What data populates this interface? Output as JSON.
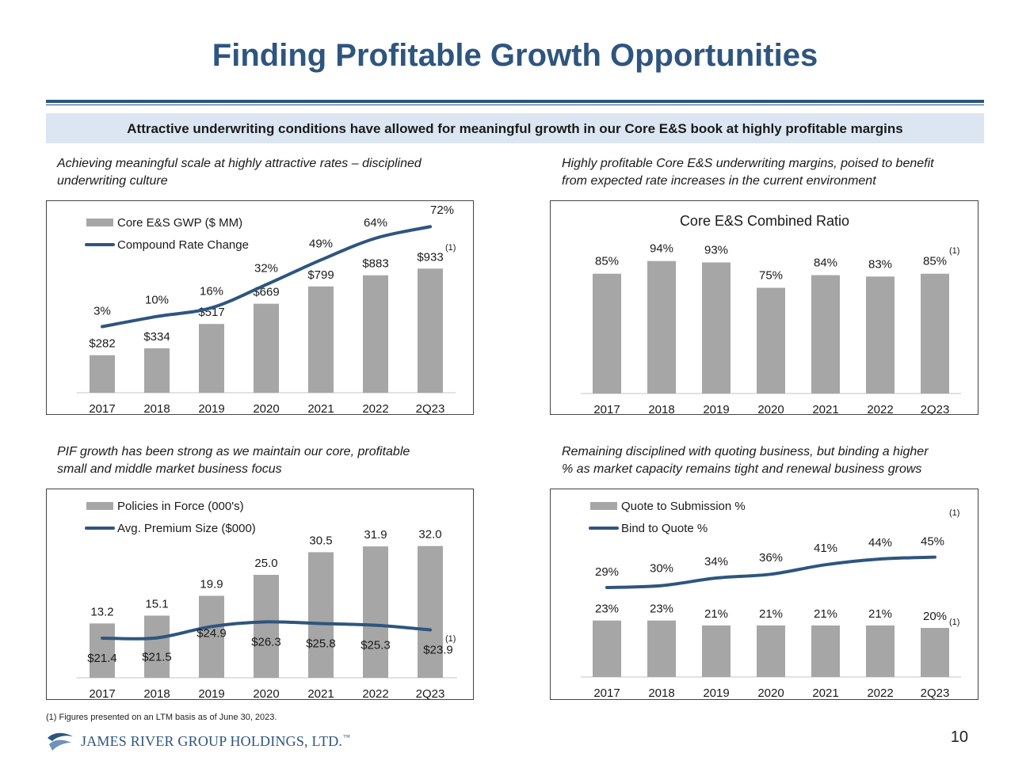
{
  "header": {
    "title": "Finding Profitable Growth Opportunities",
    "banner": "Attractive underwriting conditions have allowed for meaningful growth in our Core E&S book at highly profitable margins"
  },
  "captions": {
    "c1": [
      "Achieving meaningful scale at highly attractive rates – disciplined",
      "underwriting culture"
    ],
    "c2": [
      "Highly profitable Core E&S underwriting margins, poised to benefit",
      "from expected rate increases in the current environment"
    ],
    "c3": [
      "PIF growth has been strong as we maintain our core, profitable",
      "small and middle market business focus"
    ],
    "c4": [
      "Remaining disciplined with quoting business, but binding a higher",
      "% as market capacity remains tight and renewal business grows"
    ]
  },
  "footnote": "(1)   Figures presented on an LTM basis as of June 30, 2023.",
  "footer": {
    "company": "JAMES RIVER GROUP HOLDINGS, LTD.",
    "trademark": "™",
    "page_number": "10"
  },
  "chart_data": [
    {
      "id": "gwp",
      "type": "bar",
      "categories": [
        "2017",
        "2018",
        "2019",
        "2020",
        "2021",
        "2022",
        "2Q23"
      ],
      "series": [
        {
          "name": "Core E&S GWP ($ MM)",
          "type": "bar",
          "values": [
            282,
            334,
            517,
            669,
            799,
            883,
            933
          ],
          "labels": [
            "$282",
            "$334",
            "$517",
            "$669",
            "$799",
            "$883",
            "$933"
          ]
        },
        {
          "name": "Compound Rate Change",
          "type": "line",
          "values": [
            3,
            10,
            16,
            32,
            49,
            64,
            72
          ],
          "labels": [
            "3%",
            "10%",
            "16%",
            "32%",
            "49%",
            "64%",
            "72%"
          ]
        }
      ],
      "annotations": [
        {
          "text": "(1)",
          "target": "2Q23"
        }
      ],
      "colors": {
        "bar": "#a6a6a6",
        "line": "#2e557f"
      }
    },
    {
      "id": "combined_ratio",
      "type": "bar",
      "title": "Core E&S Combined Ratio",
      "categories": [
        "2017",
        "2018",
        "2019",
        "2020",
        "2021",
        "2022",
        "2Q23"
      ],
      "series": [
        {
          "name": "",
          "type": "bar",
          "values": [
            85,
            94,
            93,
            75,
            84,
            83,
            85
          ],
          "labels": [
            "85%",
            "94%",
            "93%",
            "75%",
            "84%",
            "83%",
            "85%"
          ]
        }
      ],
      "annotations": [
        {
          "text": "(1)",
          "target": "2Q23"
        }
      ],
      "colors": {
        "bar": "#a6a6a6"
      }
    },
    {
      "id": "pif",
      "type": "bar",
      "categories": [
        "2017",
        "2018",
        "2019",
        "2020",
        "2021",
        "2022",
        "2Q23"
      ],
      "series": [
        {
          "name": "Policies in Force (000's)",
          "type": "bar",
          "values": [
            13.2,
            15.1,
            19.9,
            25.0,
            30.5,
            31.9,
            32.0
          ],
          "labels": [
            "13.2",
            "15.1",
            "19.9",
            "25.0",
            "30.5",
            "31.9",
            "32.0"
          ]
        },
        {
          "name": "Avg. Premium Size ($000)",
          "type": "line",
          "values": [
            21.4,
            21.5,
            24.9,
            26.3,
            25.8,
            25.3,
            23.9
          ],
          "labels": [
            "$21.4",
            "$21.5",
            "$24.9",
            "$26.3",
            "$25.8",
            "$25.3",
            "$23.9"
          ]
        }
      ],
      "annotations": [
        {
          "text": "(1)",
          "target": "2Q23"
        }
      ],
      "colors": {
        "bar": "#a6a6a6",
        "line": "#2e557f"
      }
    },
    {
      "id": "quote",
      "type": "bar",
      "categories": [
        "2017",
        "2018",
        "2019",
        "2020",
        "2021",
        "2022",
        "2Q23"
      ],
      "series": [
        {
          "name": "Quote to Submission %",
          "type": "bar",
          "values": [
            23,
            23,
            21,
            21,
            21,
            21,
            20
          ],
          "labels": [
            "23%",
            "23%",
            "21%",
            "21%",
            "21%",
            "21%",
            "20%"
          ]
        },
        {
          "name": "Bind to Quote %",
          "type": "line",
          "values": [
            29,
            30,
            34,
            36,
            41,
            44,
            45
          ],
          "labels": [
            "29%",
            "30%",
            "34%",
            "36%",
            "41%",
            "44%",
            "45%"
          ]
        }
      ],
      "annotations": [
        {
          "text": "(1)",
          "target": "2Q23 bind"
        },
        {
          "text": "(1)",
          "target": "2Q23 quote"
        }
      ],
      "colors": {
        "bar": "#a6a6a6",
        "line": "#2e557f"
      }
    }
  ]
}
